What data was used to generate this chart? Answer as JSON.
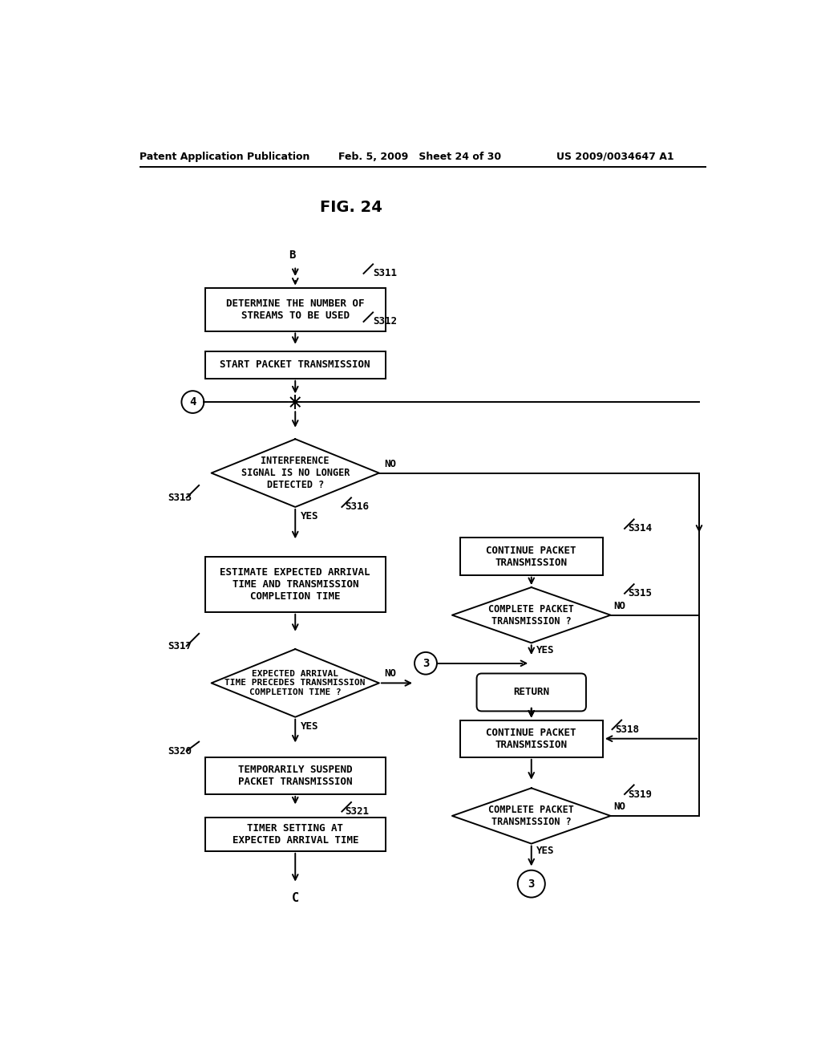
{
  "title": "FIG. 24",
  "header_left": "Patent Application Publication",
  "header_mid": "Feb. 5, 2009   Sheet 24 of 30",
  "header_right": "US 2009/0034647 A1",
  "bg_color": "#ffffff",
  "line_color": "#000000",
  "text_color": "#000000",
  "lw": 1.4
}
